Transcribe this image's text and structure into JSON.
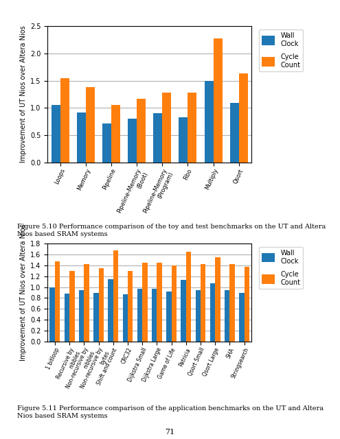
{
  "chart_data": [
    {
      "type": "bar",
      "categories": [
        "Loops",
        "Memory",
        "Pipeline",
        "Pipeline-Memory\n(Boot)",
        "Pipeline-Memory\n(Program)",
        "Fibo",
        "Multiply",
        "Qsort"
      ],
      "series": [
        {
          "name": "Wall\nClock",
          "values": [
            1.05,
            0.92,
            0.72,
            0.8,
            0.9,
            0.83,
            1.5,
            1.1
          ]
        },
        {
          "name": "Cycle\nCount",
          "values": [
            1.55,
            1.38,
            1.05,
            1.17,
            1.28,
            1.28,
            2.28,
            1.63
          ]
        }
      ],
      "y_label": "Improvement of UT Nios over Altera Nios",
      "ylim": [
        0,
        2.5
      ],
      "yticks": [
        {
          "value": 0,
          "label": "0.0"
        },
        0.5,
        {
          "value": 1,
          "label": "1.0"
        },
        1.5,
        {
          "value": 2,
          "label": "2.0"
        },
        2.5
      ],
      "grid": true,
      "legend": "upper right",
      "annotations": [
        "Figure 5.10 Performance comparison of the toy and test benchmarks on the UT and Altera Nios based SRAM systems"
      ]
    },
    {
      "type": "bar",
      "categories": [
        "1 bitloop",
        "Recursive by\nnibbles",
        "Non-recursive by\nnibbles",
        "Non-recursive by\nbytes",
        "Shift and count",
        "CRC32",
        "Dijkstra Small",
        "Dijkstra Large",
        "Game of Life",
        "Patricia",
        "Qsort Small",
        "Qsort Large",
        "SHA",
        "Stringsearch"
      ],
      "series": [
        {
          "name": "Wall\nClock",
          "values": [
            1.0,
            0.88,
            0.95,
            0.9,
            1.15,
            0.87,
            0.97,
            0.97,
            0.92,
            1.13,
            0.95,
            1.07,
            0.95,
            0.9
          ]
        },
        {
          "name": "Cycle\nCount",
          "values": [
            1.47,
            1.3,
            1.42,
            1.35,
            1.68,
            1.3,
            1.45,
            1.45,
            1.4,
            1.65,
            1.42,
            1.55,
            1.42,
            1.38
          ]
        }
      ],
      "y_label": "Improvement of UT Nios over Altera Nios",
      "ylim": [
        0,
        1.8
      ],
      "yticks": [
        {
          "value": 0,
          "label": "0.0"
        },
        0.2,
        0.4,
        0.6,
        0.8,
        {
          "value": 1,
          "label": "1.0"
        },
        1.2,
        1.4,
        1.6,
        1.8
      ],
      "grid": true,
      "legend": "upper right",
      "annotations": [
        "Figure 5.11 Performance comparison of the application benchmarks on the UT and Altera Nios based SRAM systems",
        "71"
      ]
    }
  ]
}
